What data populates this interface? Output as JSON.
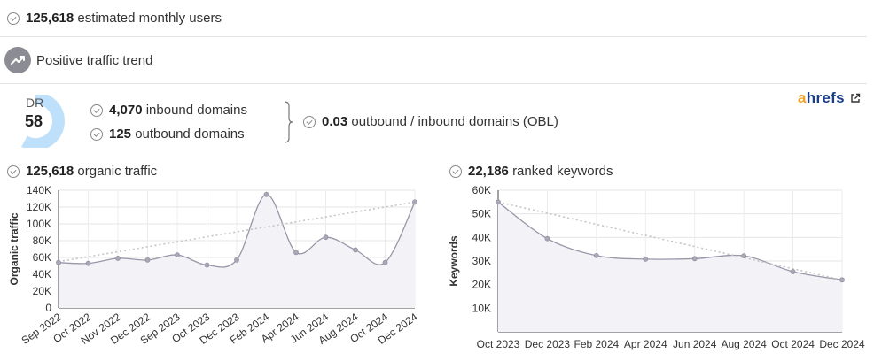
{
  "users": {
    "value": "125,618",
    "label": "estimated monthly users"
  },
  "trend": {
    "label": "Positive traffic trend"
  },
  "dr": {
    "label": "DR",
    "value": "58",
    "fraction": 0.58
  },
  "domains": {
    "inbound_value": "4,070",
    "inbound_label": "inbound domains",
    "outbound_value": "125",
    "outbound_label": "outbound domains",
    "obl_value": "0.03",
    "obl_label": "outbound / inbound domains (OBL)"
  },
  "brand": {
    "prefix": "a",
    "rest": "hrefs"
  },
  "colors": {
    "line": "#9a96a8",
    "area": "#f3f2f6",
    "trend": "#c4c4c4",
    "dr_ring": "#bfe0fb",
    "dr_track": "#eeeeee"
  },
  "chart_data": [
    {
      "type": "line",
      "title_value": "125,618",
      "title_label": "organic traffic",
      "ylabel": "Organic traffic",
      "ylim": [
        0,
        140000
      ],
      "yticks": [
        0,
        20000,
        40000,
        60000,
        80000,
        100000,
        120000,
        140000
      ],
      "ytick_labels": [
        "0",
        "20K",
        "40K",
        "60K",
        "80K",
        "100K",
        "120K",
        "140K"
      ],
      "categories": [
        "Sep 2022",
        "Oct 2022",
        "Nov 2022",
        "Dec 2022",
        "Sep 2023",
        "Oct 2023",
        "Dec 2023",
        "Feb 2024",
        "Apr 2024",
        "Jun 2024",
        "Aug 2024",
        "Oct 2024",
        "Dec 2024"
      ],
      "values": [
        54000,
        53000,
        59000,
        57000,
        63000,
        51000,
        57000,
        135000,
        66000,
        84000,
        69000,
        54000,
        126000
      ],
      "trendline": [
        55000,
        126000
      ],
      "grid": true
    },
    {
      "type": "line",
      "title_value": "22,186",
      "title_label": "ranked keywords",
      "ylabel": "Keywords",
      "ylim": [
        0,
        60000
      ],
      "yticks": [
        10000,
        20000,
        30000,
        40000,
        50000,
        60000
      ],
      "ytick_labels": [
        "10K",
        "20K",
        "30K",
        "40K",
        "50K",
        "60K"
      ],
      "categories": [
        "Oct 2023",
        "Dec 2023",
        "Feb 2024",
        "Apr 2024",
        "Jun 2024",
        "Aug 2024",
        "Oct 2024",
        "Dec 2024"
      ],
      "values": [
        55000,
        39500,
        32300,
        30800,
        31000,
        32200,
        25500,
        22000
      ],
      "trendline": [
        55000,
        22000
      ],
      "grid": true
    }
  ]
}
